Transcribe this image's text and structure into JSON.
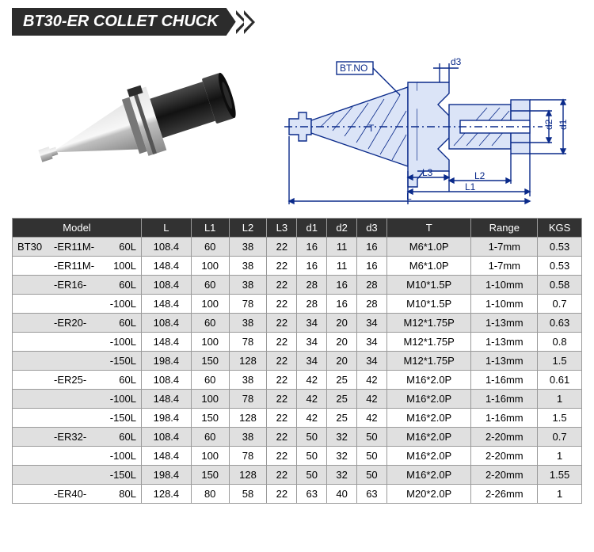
{
  "title": "BT30-ER COLLET CHUCK",
  "diagram": {
    "labels": {
      "bt_no": "BT.NO",
      "d1": "d1",
      "d2": "d2",
      "d3": "d3",
      "L": "L",
      "L1": "L1",
      "L2": "L2",
      "L3": "L3",
      "T": "T"
    },
    "stroke": "#0a2a8a",
    "fill": "#dbe4f7"
  },
  "photo": {
    "body_color": "#2f2f2f",
    "taper_color1": "#c8c8c8",
    "taper_color2": "#8a8a8a",
    "flange_color": "#6b6b6b"
  },
  "table": {
    "headers": [
      "Model",
      "L",
      "L1",
      "L2",
      "L3",
      "d1",
      "d2",
      "d3",
      "T",
      "Range",
      "KGS"
    ],
    "rows": [
      {
        "prefix": "BT30",
        "mid": "-ER11M-",
        "suf": "60L",
        "L": "108.4",
        "L1": "60",
        "L2": "38",
        "L3": "22",
        "d1": "16",
        "d2": "11",
        "d3": "16",
        "T": "M6*1.0P",
        "Range": "1-7mm",
        "KGS": "0.53"
      },
      {
        "prefix": "",
        "mid": "-ER11M-",
        "suf": "100L",
        "L": "148.4",
        "L1": "100",
        "L2": "38",
        "L3": "22",
        "d1": "16",
        "d2": "11",
        "d3": "16",
        "T": "M6*1.0P",
        "Range": "1-7mm",
        "KGS": "0.53"
      },
      {
        "prefix": "",
        "mid": "-ER16-",
        "suf": "60L",
        "L": "108.4",
        "L1": "60",
        "L2": "38",
        "L3": "22",
        "d1": "28",
        "d2": "16",
        "d3": "28",
        "T": "M10*1.5P",
        "Range": "1-10mm",
        "KGS": "0.58"
      },
      {
        "prefix": "",
        "mid": "",
        "suf": "-100L",
        "L": "148.4",
        "L1": "100",
        "L2": "78",
        "L3": "22",
        "d1": "28",
        "d2": "16",
        "d3": "28",
        "T": "M10*1.5P",
        "Range": "1-10mm",
        "KGS": "0.7"
      },
      {
        "prefix": "",
        "mid": "-ER20-",
        "suf": "60L",
        "L": "108.4",
        "L1": "60",
        "L2": "38",
        "L3": "22",
        "d1": "34",
        "d2": "20",
        "d3": "34",
        "T": "M12*1.75P",
        "Range": "1-13mm",
        "KGS": "0.63"
      },
      {
        "prefix": "",
        "mid": "",
        "suf": "-100L",
        "L": "148.4",
        "L1": "100",
        "L2": "78",
        "L3": "22",
        "d1": "34",
        "d2": "20",
        "d3": "34",
        "T": "M12*1.75P",
        "Range": "1-13mm",
        "KGS": "0.8"
      },
      {
        "prefix": "",
        "mid": "",
        "suf": "-150L",
        "L": "198.4",
        "L1": "150",
        "L2": "128",
        "L3": "22",
        "d1": "34",
        "d2": "20",
        "d3": "34",
        "T": "M12*1.75P",
        "Range": "1-13mm",
        "KGS": "1.5"
      },
      {
        "prefix": "",
        "mid": "-ER25-",
        "suf": "60L",
        "L": "108.4",
        "L1": "60",
        "L2": "38",
        "L3": "22",
        "d1": "42",
        "d2": "25",
        "d3": "42",
        "T": "M16*2.0P",
        "Range": "1-16mm",
        "KGS": "0.61"
      },
      {
        "prefix": "",
        "mid": "",
        "suf": "-100L",
        "L": "148.4",
        "L1": "100",
        "L2": "78",
        "L3": "22",
        "d1": "42",
        "d2": "25",
        "d3": "42",
        "T": "M16*2.0P",
        "Range": "1-16mm",
        "KGS": "1"
      },
      {
        "prefix": "",
        "mid": "",
        "suf": "-150L",
        "L": "198.4",
        "L1": "150",
        "L2": "128",
        "L3": "22",
        "d1": "42",
        "d2": "25",
        "d3": "42",
        "T": "M16*2.0P",
        "Range": "1-16mm",
        "KGS": "1.5"
      },
      {
        "prefix": "",
        "mid": "-ER32-",
        "suf": "60L",
        "L": "108.4",
        "L1": "60",
        "L2": "38",
        "L3": "22",
        "d1": "50",
        "d2": "32",
        "d3": "50",
        "T": "M16*2.0P",
        "Range": "2-20mm",
        "KGS": "0.7"
      },
      {
        "prefix": "",
        "mid": "",
        "suf": "-100L",
        "L": "148.4",
        "L1": "100",
        "L2": "78",
        "L3": "22",
        "d1": "50",
        "d2": "32",
        "d3": "50",
        "T": "M16*2.0P",
        "Range": "2-20mm",
        "KGS": "1"
      },
      {
        "prefix": "",
        "mid": "",
        "suf": "-150L",
        "L": "198.4",
        "L1": "150",
        "L2": "128",
        "L3": "22",
        "d1": "50",
        "d2": "32",
        "d3": "50",
        "T": "M16*2.0P",
        "Range": "2-20mm",
        "KGS": "1.55"
      },
      {
        "prefix": "",
        "mid": "-ER40-",
        "suf": "80L",
        "L": "128.4",
        "L1": "80",
        "L2": "58",
        "L3": "22",
        "d1": "63",
        "d2": "40",
        "d3": "63",
        "T": "M20*2.0P",
        "Range": "2-26mm",
        "KGS": "1"
      }
    ]
  }
}
